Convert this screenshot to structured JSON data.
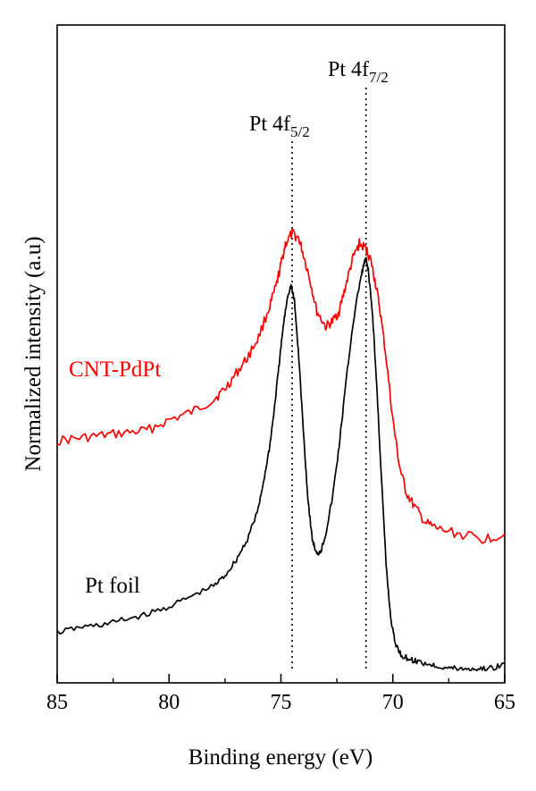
{
  "chart_data": {
    "type": "line",
    "xlabel": "Binding energy (eV)",
    "ylabel": "Normalized intensity (a.u)",
    "xlim": [
      85,
      65
    ],
    "x_reversed": true,
    "ylim": [
      0,
      1
    ],
    "y_ticks_shown": false,
    "grid": false,
    "x_ticks": [
      "85",
      "80",
      "75",
      "70",
      "65"
    ],
    "x_tick_values": [
      85,
      80,
      75,
      70,
      65
    ],
    "series": [
      {
        "name": "CNT-PdPt",
        "color": "#ff0000",
        "x": [
          85.0,
          84.0,
          83.0,
          82.0,
          81.0,
          80.0,
          79.0,
          78.0,
          77.5,
          77.0,
          76.5,
          76.0,
          75.5,
          75.2,
          75.0,
          74.8,
          74.5,
          74.2,
          74.0,
          73.7,
          73.4,
          73.0,
          72.7,
          72.4,
          72.1,
          71.8,
          71.5,
          71.2,
          71.0,
          70.8,
          70.6,
          70.3,
          70.0,
          69.7,
          69.4,
          69.0,
          68.5,
          68.0,
          67.0,
          66.0,
          65.0
        ],
        "y": [
          0.46,
          0.465,
          0.47,
          0.475,
          0.48,
          0.5,
          0.515,
          0.54,
          0.56,
          0.59,
          0.62,
          0.66,
          0.72,
          0.76,
          0.8,
          0.84,
          0.86,
          0.85,
          0.82,
          0.77,
          0.71,
          0.68,
          0.69,
          0.71,
          0.76,
          0.81,
          0.84,
          0.83,
          0.81,
          0.77,
          0.72,
          0.62,
          0.5,
          0.41,
          0.36,
          0.33,
          0.3,
          0.29,
          0.28,
          0.27,
          0.28
        ]
      },
      {
        "name": "Pt foil",
        "color": "#000000",
        "x": [
          85.0,
          84.0,
          83.0,
          82.0,
          81.0,
          80.0,
          79.0,
          78.0,
          77.5,
          77.0,
          76.5,
          76.0,
          75.7,
          75.5,
          75.3,
          75.1,
          74.9,
          74.7,
          74.55,
          74.4,
          74.2,
          74.0,
          73.8,
          73.6,
          73.4,
          73.2,
          73.0,
          72.7,
          72.4,
          72.1,
          71.8,
          71.5,
          71.3,
          71.2,
          71.1,
          70.9,
          70.7,
          70.5,
          70.3,
          70.1,
          69.9,
          69.6,
          69.3,
          69.0,
          68.5,
          68.0,
          67.5,
          67.0,
          66.5,
          66.0,
          65.5,
          65.0
        ],
        "y": [
          0.09,
          0.1,
          0.105,
          0.115,
          0.125,
          0.14,
          0.16,
          0.18,
          0.2,
          0.23,
          0.27,
          0.33,
          0.4,
          0.45,
          0.52,
          0.6,
          0.68,
          0.74,
          0.76,
          0.73,
          0.62,
          0.48,
          0.35,
          0.27,
          0.24,
          0.25,
          0.28,
          0.35,
          0.45,
          0.57,
          0.68,
          0.76,
          0.8,
          0.81,
          0.79,
          0.7,
          0.55,
          0.38,
          0.22,
          0.12,
          0.07,
          0.045,
          0.04,
          0.035,
          0.03,
          0.025,
          0.022,
          0.02,
          0.02,
          0.02,
          0.022,
          0.03
        ]
      }
    ],
    "annotations": [
      {
        "label_main": "Pt 4f",
        "label_sub": "5/2",
        "x": 74.5
      },
      {
        "label_main": "Pt 4f",
        "label_sub": "7/2",
        "x": 71.2
      }
    ]
  }
}
